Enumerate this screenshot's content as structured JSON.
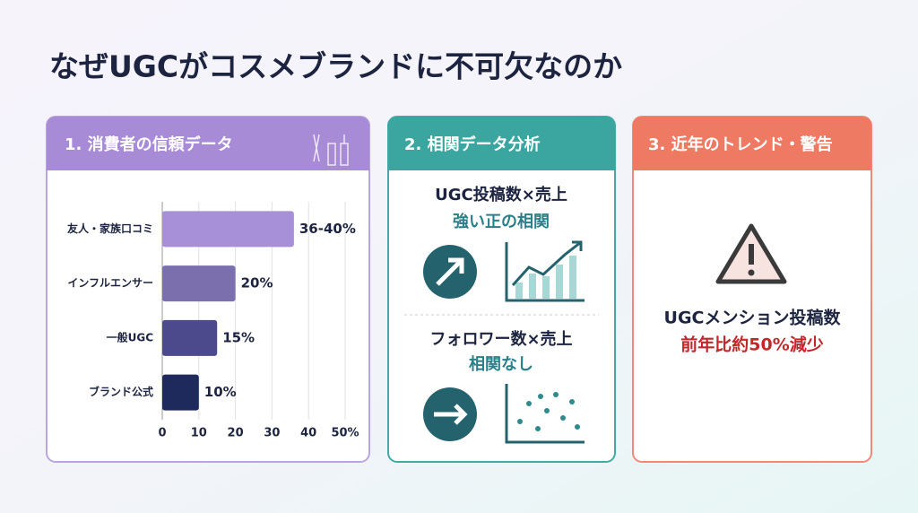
{
  "title": "なぜUGCがコスメブランドに不可欠なのか",
  "cards": [
    {
      "heading": "1. 消費者の信頼データ"
    },
    {
      "heading": "2. 相関データ分析",
      "items": [
        {
          "line1": "UGC投稿数×売上",
          "line2": "強い正の相関"
        },
        {
          "line1": "フォロワー数×売上",
          "line2": "相関なし"
        }
      ]
    },
    {
      "heading": "3. 近年のトレンド・警告",
      "line1": "UGCメンション投稿数",
      "line2": "前年比約50%減少"
    }
  ],
  "chart_data": {
    "type": "bar",
    "orientation": "horizontal",
    "categories": [
      "友人・家族口コミ",
      "インフルエンサー",
      "一般UGC",
      "ブランド公式"
    ],
    "values": [
      36,
      20,
      15,
      10
    ],
    "value_labels": [
      "36-40%",
      "20%",
      "15%",
      "10%"
    ],
    "colors": [
      "#a890d9",
      "#7c6fae",
      "#4c4a8c",
      "#1e2a5b"
    ],
    "xlim": [
      0,
      50
    ],
    "xticks": [
      0,
      10,
      20,
      30,
      40,
      {
        "value": 50,
        "label": "50%"
      }
    ],
    "grid": true
  }
}
